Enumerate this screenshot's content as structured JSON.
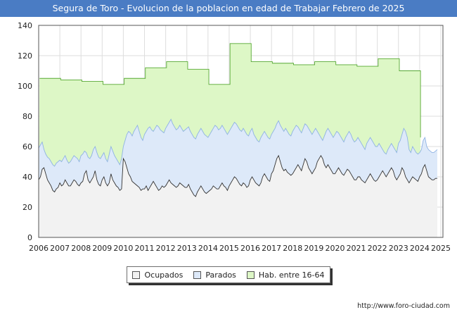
{
  "title": "Segura de Toro - Evolucion de la poblacion en edad de Trabajar Febrero de 2025",
  "source_url": "http://www.foro-ciudad.com",
  "colors": {
    "habitantes_fill": "#ddf7c6",
    "habitantes_line": "#56a832",
    "parados_fill": "#dde9f9",
    "parados_line": "#8fb3e3",
    "ocupados_fill": "#f2f2f2",
    "ocupados_line": "#333333",
    "title_bg": "#4a7cc4"
  },
  "chart_data": {
    "type": "area",
    "title": "Segura de Toro - Evolucion de la poblacion en edad de Trabajar Febrero de 2025",
    "xlabel": "",
    "ylabel": "",
    "xlim": [
      2006,
      2025.1
    ],
    "ylim": [
      0,
      140
    ],
    "yticks": [
      0,
      20,
      40,
      60,
      80,
      100,
      120,
      140
    ],
    "xticks": [
      2006,
      2007,
      2008,
      2009,
      2010,
      2011,
      2012,
      2013,
      2014,
      2015,
      2016,
      2017,
      2018,
      2019,
      2020,
      2021,
      2022,
      2023,
      2024,
      2025
    ],
    "grid": true,
    "legend_position": "bottom",
    "series": [
      {
        "name": "Hab. entre 16-64",
        "color": "#56a832",
        "fill": "#ddf7c6",
        "step_years": [
          2006,
          2007,
          2008,
          2009,
          2010,
          2011,
          2012,
          2013,
          2014,
          2015,
          2016,
          2017,
          2018,
          2019,
          2020,
          2021,
          2022,
          2023,
          2024
        ],
        "values": [
          105,
          104,
          103,
          101,
          105,
          112,
          116,
          111,
          101,
          128,
          116,
          115,
          114,
          116,
          114,
          113,
          118,
          110,
          66
        ]
      },
      {
        "name": "Parados",
        "color": "#8fb3e3",
        "fill": "#dde9f9",
        "x_start": 2006,
        "values": [
          59,
          61,
          63,
          58,
          55,
          53,
          52,
          50,
          48,
          47,
          49,
          50,
          51,
          50,
          52,
          54,
          51,
          49,
          50,
          52,
          54,
          53,
          52,
          50,
          54,
          55,
          57,
          56,
          53,
          52,
          54,
          58,
          60,
          56,
          53,
          52,
          54,
          56,
          52,
          50,
          55,
          60,
          57,
          54,
          52,
          50,
          48,
          52,
          60,
          64,
          68,
          70,
          69,
          67,
          70,
          72,
          74,
          70,
          66,
          64,
          68,
          70,
          72,
          73,
          71,
          70,
          72,
          74,
          73,
          71,
          70,
          69,
          72,
          74,
          76,
          78,
          75,
          73,
          71,
          72,
          74,
          72,
          70,
          71,
          72,
          73,
          70,
          68,
          66,
          65,
          68,
          70,
          72,
          70,
          68,
          67,
          66,
          68,
          70,
          72,
          74,
          73,
          71,
          72,
          74,
          72,
          70,
          68,
          70,
          72,
          74,
          76,
          75,
          73,
          71,
          70,
          72,
          70,
          68,
          67,
          70,
          72,
          68,
          66,
          64,
          63,
          66,
          68,
          70,
          68,
          66,
          65,
          68,
          70,
          72,
          75,
          77,
          74,
          72,
          70,
          72,
          70,
          68,
          67,
          70,
          72,
          74,
          73,
          71,
          69,
          72,
          75,
          74,
          72,
          70,
          68,
          70,
          72,
          70,
          68,
          66,
          64,
          67,
          70,
          72,
          70,
          68,
          66,
          68,
          70,
          69,
          67,
          65,
          63,
          66,
          68,
          70,
          68,
          65,
          63,
          64,
          66,
          64,
          62,
          60,
          58,
          62,
          64,
          66,
          64,
          62,
          60,
          60,
          62,
          60,
          58,
          56,
          55,
          58,
          60,
          62,
          60,
          58,
          56,
          62,
          64,
          68,
          72,
          70,
          66,
          58,
          56,
          60,
          58,
          56,
          55,
          56,
          58,
          64,
          66,
          60,
          58,
          57,
          56,
          56,
          57,
          58
        ]
      },
      {
        "name": "Ocupados",
        "color": "#333333",
        "fill": "#f2f2f2",
        "x_start": 2006,
        "values": [
          38,
          40,
          45,
          46,
          42,
          38,
          36,
          34,
          31,
          30,
          32,
          33,
          36,
          34,
          35,
          38,
          36,
          34,
          34,
          36,
          38,
          37,
          35,
          34,
          36,
          37,
          42,
          44,
          38,
          36,
          38,
          40,
          44,
          38,
          35,
          34,
          38,
          40,
          36,
          34,
          36,
          42,
          38,
          36,
          34,
          33,
          31,
          32,
          52,
          50,
          46,
          42,
          40,
          37,
          36,
          35,
          34,
          33,
          31,
          32,
          32,
          34,
          31,
          33,
          35,
          37,
          35,
          33,
          31,
          32,
          34,
          33,
          34,
          36,
          38,
          36,
          35,
          34,
          33,
          34,
          36,
          35,
          34,
          33,
          33,
          35,
          32,
          30,
          28,
          27,
          30,
          32,
          34,
          32,
          30,
          29,
          30,
          31,
          32,
          34,
          33,
          32,
          32,
          34,
          36,
          34,
          33,
          31,
          34,
          36,
          38,
          40,
          39,
          37,
          35,
          34,
          36,
          35,
          33,
          34,
          38,
          40,
          38,
          36,
          35,
          34,
          36,
          40,
          42,
          40,
          38,
          37,
          42,
          44,
          48,
          52,
          54,
          50,
          46,
          44,
          45,
          43,
          42,
          41,
          42,
          44,
          46,
          48,
          46,
          44,
          48,
          52,
          50,
          46,
          44,
          42,
          44,
          46,
          50,
          52,
          54,
          52,
          48,
          46,
          48,
          46,
          44,
          42,
          42,
          44,
          46,
          44,
          42,
          41,
          43,
          45,
          44,
          42,
          40,
          38,
          38,
          40,
          40,
          38,
          37,
          36,
          38,
          40,
          42,
          40,
          38,
          37,
          38,
          40,
          42,
          44,
          42,
          40,
          42,
          44,
          46,
          44,
          40,
          38,
          40,
          42,
          46,
          44,
          40,
          38,
          36,
          38,
          40,
          39,
          38,
          37,
          40,
          42,
          46,
          48,
          44,
          40,
          39,
          38,
          38,
          39,
          39
        ]
      }
    ]
  },
  "legend": {
    "ocupados": "Ocupados",
    "parados": "Parados",
    "habitantes": "Hab. entre 16-64"
  }
}
